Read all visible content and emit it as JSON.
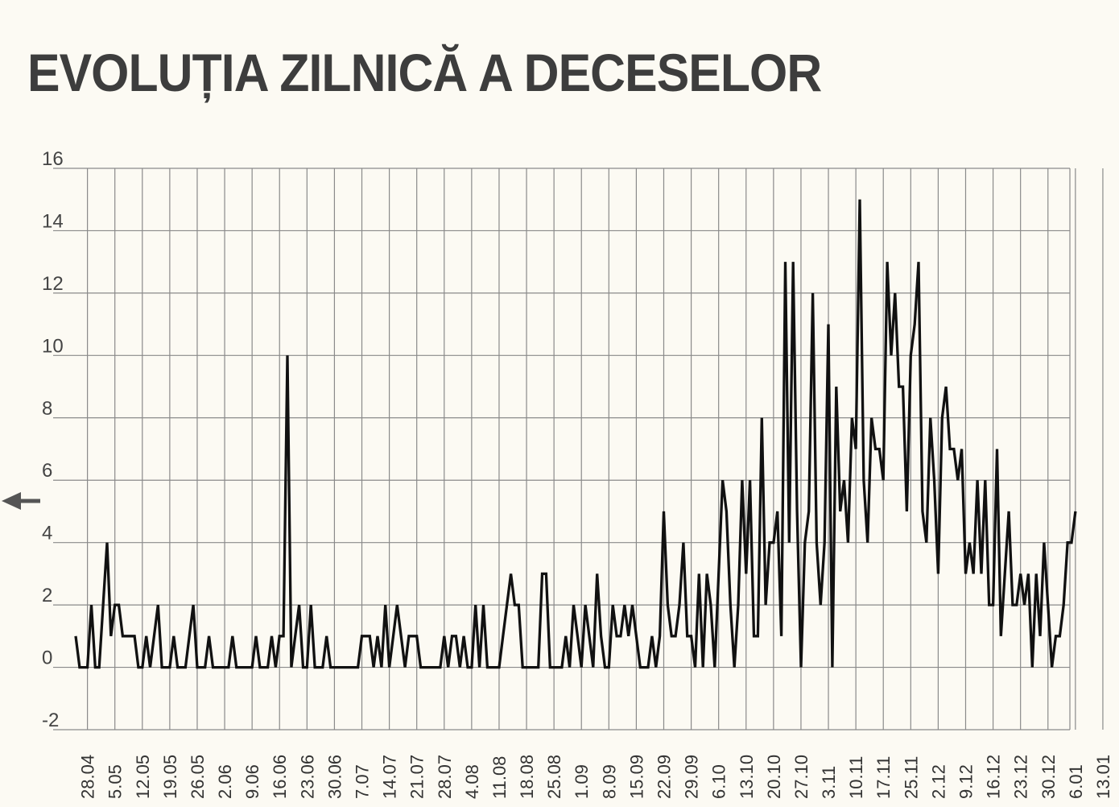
{
  "title": "EVOLUȚIA ZILNICĂ A DECESELOR",
  "chart_data": {
    "type": "line",
    "ylim": [
      -2,
      16
    ],
    "y_ticks": [
      -2,
      0,
      2,
      4,
      6,
      8,
      10,
      12,
      14,
      16
    ],
    "grid": true,
    "x_tick_labels": [
      "28.04",
      "5.05",
      "12.05",
      "19.05",
      "26.05",
      "2.06",
      "9.06",
      "16.06",
      "23.06",
      "30.06",
      "7.07",
      "14.07",
      "21.07",
      "28.07",
      "4.08",
      "11.08",
      "18.08",
      "25.08",
      "1.09",
      "8.09",
      "15.09",
      "22.09",
      "29.09",
      "6.10",
      "13.10",
      "20.10",
      "27.10",
      "3.11",
      "10.11",
      "17.11",
      "25.11",
      "2.12",
      "9.12",
      "16.12",
      "23.12",
      "30.12",
      "6.01",
      "13.01"
    ],
    "series": [
      {
        "values": [
          1,
          0,
          0,
          0,
          2,
          0,
          0,
          2,
          4,
          1,
          2,
          2,
          1,
          1,
          1,
          1,
          0,
          0,
          1,
          0,
          1,
          2,
          0,
          0,
          0,
          1,
          0,
          0,
          0,
          1,
          2,
          0,
          0,
          0,
          1,
          0,
          0,
          0,
          0,
          0,
          1,
          0,
          0,
          0,
          0,
          0,
          1,
          0,
          0,
          0,
          1,
          0,
          1,
          1,
          10,
          0,
          1,
          2,
          0,
          0,
          2,
          0,
          0,
          0,
          1,
          0,
          0,
          0,
          0,
          0,
          0,
          0,
          0,
          1,
          1,
          1,
          0,
          1,
          0,
          2,
          0,
          1,
          2,
          1,
          0,
          1,
          1,
          1,
          0,
          0,
          0,
          0,
          0,
          0,
          1,
          0,
          1,
          1,
          0,
          1,
          0,
          0,
          2,
          0,
          2,
          0,
          0,
          0,
          0,
          1,
          2,
          3,
          2,
          2,
          0,
          0,
          0,
          0,
          0,
          3,
          3,
          0,
          0,
          0,
          0,
          1,
          0,
          2,
          1,
          0,
          2,
          1,
          0,
          3,
          1,
          0,
          0,
          2,
          1,
          1,
          2,
          1,
          2,
          1,
          0,
          0,
          0,
          1,
          0,
          1,
          5,
          2,
          1,
          1,
          2,
          4,
          1,
          1,
          0,
          3,
          0,
          3,
          2,
          0,
          3,
          6,
          5,
          2,
          0,
          2,
          6,
          3,
          6,
          1,
          1,
          8,
          2,
          4,
          4,
          5,
          1,
          13,
          4,
          13,
          5,
          0,
          4,
          5,
          12,
          4,
          2,
          4,
          11,
          0,
          9,
          5,
          6,
          4,
          8,
          7,
          15,
          6,
          4,
          8,
          7,
          7,
          6,
          13,
          10,
          12,
          9,
          9,
          5,
          10,
          11,
          13,
          5,
          4,
          8,
          6,
          3,
          8,
          9,
          7,
          7,
          6,
          7,
          3,
          4,
          3,
          6,
          3,
          6,
          2,
          2,
          7,
          1,
          3,
          5,
          2,
          2,
          3,
          2,
          3,
          0,
          3,
          1,
          4,
          2,
          0,
          1,
          1,
          2,
          4,
          4,
          5
        ]
      }
    ]
  }
}
